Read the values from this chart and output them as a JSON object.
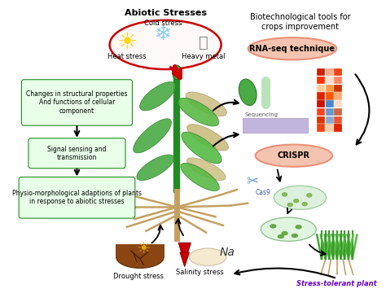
{
  "bg_color": "#ffffff",
  "title_abiotic": "Abiotic Stresses",
  "title_bio": "Biotechnological tools for\ncrops improvement",
  "stress_labels": [
    "Cold stress",
    "Heat stress",
    "Heavy metal"
  ],
  "left_boxes": [
    "Changes in structural properties\nAnd functions of cellular\ncomponent",
    "Signal sensing and\ntransmission",
    "Physio-morphological adaptions of plants\nin response to abiotic stresses"
  ],
  "right_labels": [
    "RNA-seq technique",
    "CRISPR"
  ],
  "bottom_labels": [
    "Drought stress",
    "Salinity stress Na"
  ],
  "final_label": "Stress-tolerant plant",
  "oval_abiotic_color": "#cc0000",
  "oval_salmon_color": "#e8917a",
  "oval_salmon_fc": "#f5c4b0",
  "box_fc": "#e8ffe8",
  "box_ec": "#228b22",
  "stem_color": "#228b22",
  "root_color": "#c4a060",
  "leaf_green": "#4aaa44",
  "leaf_tan": "#c8b87a",
  "arrow_color": "#111111",
  "red_color": "#cc0000",
  "final_color": "#6600cc",
  "seq_strip_color": "#b8a8d8",
  "heatmap_colors": [
    [
      "#cc2200",
      "#ffaa88",
      "#ee4411"
    ],
    [
      "#ff3300",
      "#ffddcc",
      "#ff8866"
    ],
    [
      "#ffcc99",
      "#ff9944",
      "#cc3300"
    ],
    [
      "#dd2200",
      "#ff5500",
      "#ffaa77"
    ],
    [
      "#cc1100",
      "#4488cc",
      "#ffddcc"
    ],
    [
      "#ff4422",
      "#6699cc",
      "#cc6644"
    ],
    [
      "#dd3300",
      "#88aacc",
      "#ee5533"
    ],
    [
      "#ee4411",
      "#ffccaa",
      "#dd2200"
    ]
  ]
}
